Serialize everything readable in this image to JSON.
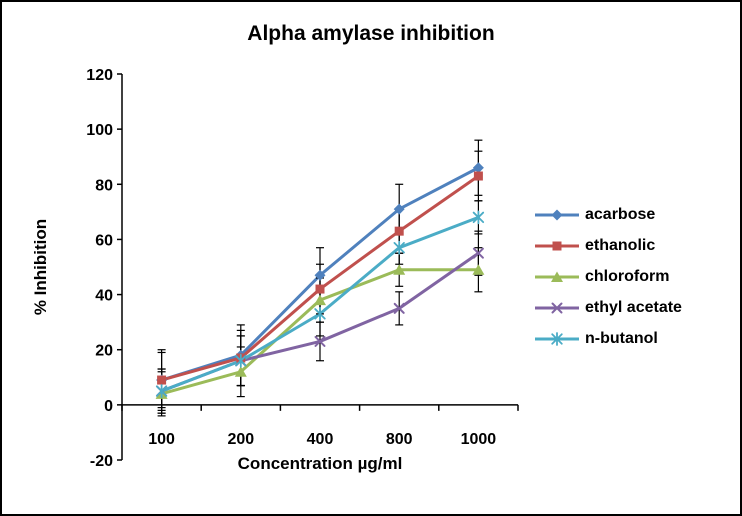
{
  "chart_data": {
    "type": "line",
    "title": "Alpha amylase inhibition",
    "xlabel": "Concentration µg/ml",
    "ylabel": "% Inhibition",
    "categories": [
      100,
      200,
      400,
      800,
      1000
    ],
    "ylim": [
      -20,
      120
    ],
    "ytick_step": 20,
    "grid": false,
    "legend_position": "right",
    "error_bar_color": "#000000",
    "axis_color": "#000000",
    "series": [
      {
        "name": "acarbose",
        "color": "#4F81BD",
        "marker": "diamond",
        "values": [
          9,
          18,
          47,
          71,
          86
        ],
        "errors": [
          11,
          11,
          10,
          9,
          10
        ]
      },
      {
        "name": "ethanolic",
        "color": "#C0504D",
        "marker": "square",
        "values": [
          9,
          17,
          42,
          63,
          83
        ],
        "errors": [
          10,
          10,
          9,
          8,
          9
        ]
      },
      {
        "name": "chloroform",
        "color": "#9BBB59",
        "marker": "triangle",
        "values": [
          4,
          12,
          38,
          49,
          49
        ],
        "errors": [
          8,
          9,
          8,
          6,
          8
        ]
      },
      {
        "name": "ethyl acetate",
        "color": "#8064A2",
        "marker": "x",
        "values": [
          5,
          16,
          23,
          35,
          55
        ],
        "errors": [
          8,
          9,
          7,
          6,
          8
        ]
      },
      {
        "name": "n-butanol",
        "color": "#4BACC6",
        "marker": "asterisk",
        "values": [
          5,
          16,
          33,
          57,
          68
        ],
        "errors": [
          8,
          9,
          8,
          6,
          6
        ]
      }
    ]
  }
}
